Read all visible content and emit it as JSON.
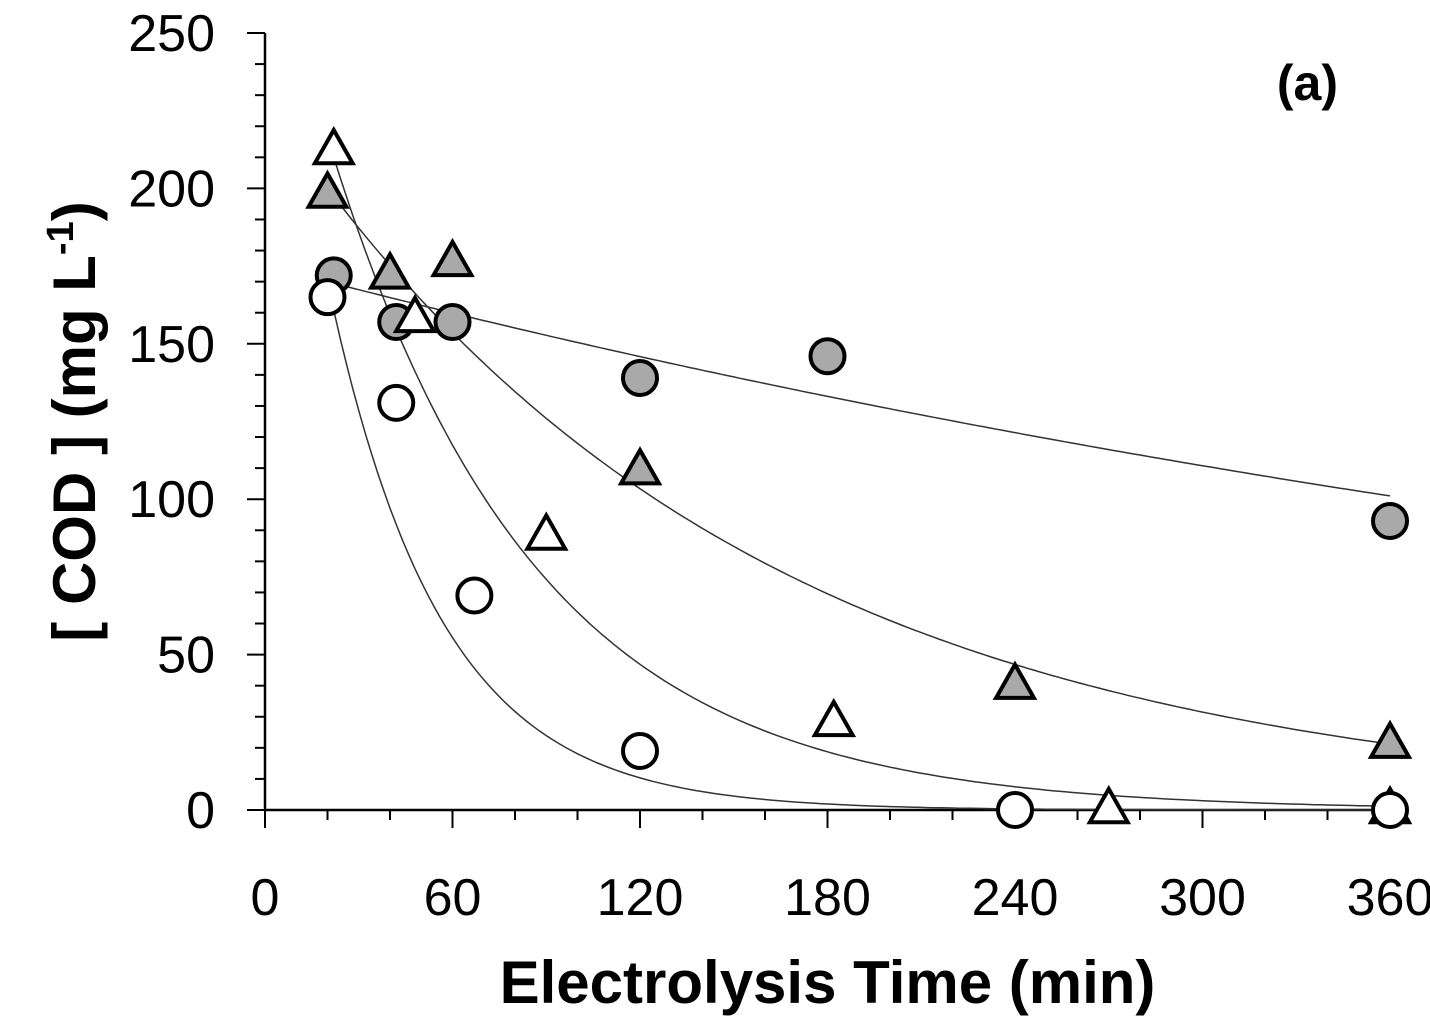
{
  "chart_data": {
    "type": "scatter",
    "panel_label": "(a)",
    "xlabel": "Electrolysis Time (min)",
    "ylabel_main": "[ COD ] (mg L",
    "ylabel_sup": "-1",
    "ylabel_close": ")",
    "xlim": [
      0,
      360
    ],
    "ylim": [
      0,
      250
    ],
    "xticks": [
      "0",
      "60",
      "120",
      "180",
      "240",
      "300",
      "360"
    ],
    "yticks": [
      "0",
      "50",
      "100",
      "150",
      "200",
      "250"
    ],
    "grid": false,
    "series": [
      {
        "marker": "circle",
        "fill": "#a9a9a9",
        "points": [
          [
            22,
            172
          ],
          [
            42,
            157
          ],
          [
            60,
            157
          ],
          [
            120,
            139
          ],
          [
            180,
            146
          ],
          [
            360,
            93
          ]
        ],
        "fit": {
          "c0": 170,
          "k": 0.00153,
          "x0": 20
        }
      },
      {
        "marker": "triangle",
        "fill": "#a9a9a9",
        "points": [
          [
            20,
            199
          ],
          [
            40,
            173
          ],
          [
            60,
            177
          ],
          [
            120,
            110
          ],
          [
            240,
            41
          ],
          [
            360,
            22
          ]
        ],
        "fit": {
          "c0": 200,
          "k": 0.0066,
          "x0": 20
        }
      },
      {
        "marker": "triangle",
        "fill": "#ffffff",
        "points": [
          [
            22,
            213
          ],
          [
            48,
            159
          ],
          [
            90,
            89
          ],
          [
            182,
            29
          ],
          [
            270,
            1
          ],
          [
            360,
            1
          ]
        ],
        "fit": {
          "c0": 210,
          "k": 0.0153,
          "x0": 22
        }
      },
      {
        "marker": "circle",
        "fill": "#ffffff",
        "points": [
          [
            20,
            165
          ],
          [
            42,
            131
          ],
          [
            67,
            69
          ],
          [
            120,
            19
          ],
          [
            240,
            0
          ],
          [
            360,
            0
          ]
        ],
        "fit": {
          "c0": 170,
          "k": 0.028,
          "x0": 20
        }
      }
    ]
  }
}
